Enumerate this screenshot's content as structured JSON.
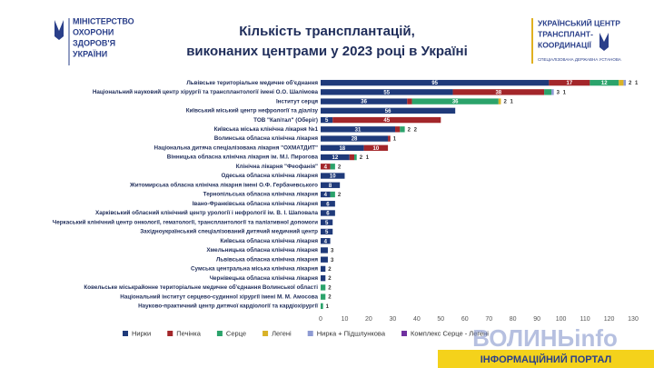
{
  "header": {
    "left_logo": [
      "МІНІСТЕРСТВО",
      "ОХОРОНИ",
      "ЗДОРОВ'Я",
      "УКРАЇНИ"
    ],
    "right_logo": [
      "УКРАЇНСЬКИЙ ЦЕНТР",
      "ТРАНСПЛАНТ-",
      "КООРДИНАЦІЇ"
    ],
    "right_subtitle": "СПЕЦІАЛІЗОВАНА ДЕРЖАВНА УСТАНОВА"
  },
  "watermark": {
    "brand": "ВОЛИНЬinfo",
    "tagline": "ІНФОРМАЦІЙНИЙ ПОРТАЛ"
  },
  "chart_data": {
    "type": "stacked-barh",
    "title": [
      "Кількість трансплантацій,",
      "виконаних центрами у 2023 році в Україні"
    ],
    "categories": [
      "Львівське територіальне медичне об'єднання",
      "Національний науковий центр хірургії та трансплантології імені О.О. Шалімова",
      "Інститут серця",
      "Київський міський центр нефрології та діалізу",
      "ТОВ \"Капітал\" (Оберіг)",
      "Київська міська клінічна лікарня №1",
      "Волинська обласна клінічна лікарня",
      "Національна дитяча спеціалізована лікарня \"ОХМАТДИТ\"",
      "Вінницька обласна клінічна лікарня ім. М.І. Пирогова",
      "Клінічна лікарня \"Феофанія\"",
      "Одеська обласна клінічна лікарня",
      "Житомирська обласна клінічна лікарня імені О.Ф. Гербачевського",
      "Тернопільська обласна клінічна лікарня",
      "Івано-Франківська обласна клінічна лікарня",
      "Харківський обласний клінічний центр урології і нефрології ім. В. І. Шаповала",
      "Черкаський клінічний центр онкології, гематології, трансплантології та паліативної допомоги",
      "Західноукраїнський спеціалізований дитячий медичний центр",
      "Київська обласна клінічна лікарня",
      "Хмельницька обласна клінічна лікарня",
      "Львівська обласна клінічна лікарня",
      "Сумська центральна міська клінічна лікарня",
      "Чернівецька обласна клінічна лікарня",
      "Ковельське міськрайонне територіальне медичне об'єднання Волинської області",
      "Національний інститут серцево-судинної хірургії імені М. М. Амосова",
      "Науково-практичний центр дитячої кардіології та кардіохірургії"
    ],
    "series": [
      {
        "name": "Нирки",
        "color": "#1f3a7a",
        "values": [
          95,
          55,
          36,
          56,
          5,
          31,
          28,
          18,
          12,
          null,
          10,
          8,
          4,
          6,
          6,
          5,
          5,
          4,
          3,
          3,
          2,
          2,
          null,
          null,
          null
        ]
      },
      {
        "name": "Печінка",
        "color": "#a3262a",
        "values": [
          17,
          38,
          2,
          null,
          45,
          2,
          1,
          10,
          2,
          4,
          null,
          null,
          null,
          null,
          null,
          null,
          null,
          null,
          null,
          null,
          null,
          null,
          null,
          null,
          null
        ]
      },
      {
        "name": "Серце",
        "color": "#2ba36b",
        "values": [
          12,
          3,
          36,
          null,
          null,
          2,
          null,
          null,
          1,
          2,
          null,
          null,
          2,
          null,
          null,
          null,
          null,
          null,
          null,
          null,
          null,
          null,
          2,
          2,
          1
        ]
      },
      {
        "name": "Легені",
        "color": "#d9b228",
        "values": [
          2,
          null,
          1,
          null,
          null,
          null,
          null,
          null,
          null,
          null,
          null,
          null,
          null,
          null,
          null,
          null,
          null,
          null,
          null,
          null,
          null,
          null,
          null,
          null,
          null
        ]
      },
      {
        "name": "Нирка + Підшлункова",
        "color": "#8e9bd3",
        "values": [
          1,
          1,
          null,
          null,
          null,
          null,
          null,
          null,
          null,
          null,
          null,
          null,
          null,
          null,
          null,
          null,
          null,
          null,
          null,
          null,
          null,
          null,
          null,
          null,
          null
        ]
      },
      {
        "name": "Комплекс Серце - Легені",
        "color": "#7030a0",
        "values": [
          null,
          null,
          null,
          null,
          null,
          null,
          null,
          null,
          null,
          null,
          null,
          null,
          null,
          null,
          null,
          null,
          null,
          null,
          null,
          null,
          null,
          null,
          null,
          null,
          null
        ]
      }
    ],
    "xlim": [
      0,
      130
    ],
    "xticks": [
      0,
      10,
      20,
      30,
      40,
      50,
      60,
      70,
      80,
      90,
      100,
      110,
      120,
      130
    ],
    "grid": false,
    "legend": "bottom"
  }
}
